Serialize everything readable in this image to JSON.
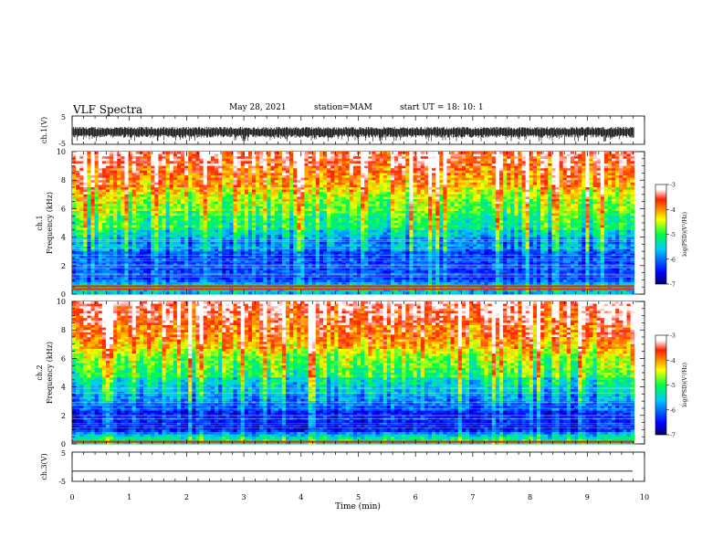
{
  "header": {
    "title": "VLF Spectra",
    "date": "May 28, 2021",
    "station": "station=MAM",
    "start_ut": "start  UT =  18: 10: 1"
  },
  "chart_data": [
    {
      "id": "ch1-waveform",
      "type": "line",
      "ylabel": "ch.1(V)",
      "ylim": [
        -5,
        5
      ],
      "yticks": [
        "5",
        "-5"
      ],
      "xlim": [
        0,
        10
      ],
      "description": "dense noisy voltage trace, roughly between -4 and +1 V"
    },
    {
      "id": "ch1-spectrogram",
      "type": "heatmap",
      "ylabel_line1": "ch.1",
      "ylabel_line2": "Frequency (kHz)",
      "ylim": [
        0,
        10
      ],
      "yticks": [
        "0",
        "2",
        "4",
        "6",
        "8",
        "10"
      ],
      "xlim": [
        0,
        10
      ],
      "x_data_end": 9.82,
      "colorbar": {
        "min": -7,
        "max": -3,
        "ticks": [
          "-3",
          "-4",
          "-5",
          "-6",
          "-7"
        ],
        "label": "log(PSD)(V²/Hz)"
      },
      "profile_freq_khz": [
        0,
        0.5,
        1,
        2,
        3,
        4,
        5,
        6,
        7,
        8,
        9,
        10
      ],
      "profile_log_psd": [
        -5.8,
        -5.2,
        -6.4,
        -6.3,
        -6.0,
        -5.6,
        -5.1,
        -4.8,
        -4.4,
        -4.0,
        -3.6,
        -3.4
      ],
      "bright_bands_khz": [
        0.35,
        0.55
      ]
    },
    {
      "id": "ch2-spectrogram",
      "type": "heatmap",
      "ylabel_line1": "ch.2",
      "ylabel_line2": "Frequency (kHz)",
      "ylim": [
        0,
        10
      ],
      "yticks": [
        "0",
        "2",
        "4",
        "6",
        "8",
        "10"
      ],
      "xlim": [
        0,
        10
      ],
      "x_data_end": 9.82,
      "colorbar": {
        "min": -7,
        "max": -3,
        "ticks": [
          "-3",
          "-4",
          "-5",
          "-6",
          "-7"
        ],
        "label": "log(PSD)(V²/Hz)"
      },
      "profile_freq_khz": [
        0,
        0.5,
        1,
        2,
        3,
        4,
        5,
        6,
        7,
        8,
        9,
        10
      ],
      "profile_log_psd": [
        -5.2,
        -5.4,
        -6.4,
        -6.4,
        -6.0,
        -5.5,
        -5.0,
        -4.6,
        -4.2,
        -3.8,
        -3.5,
        -3.3
      ],
      "bright_bands_khz": [
        0.15
      ]
    },
    {
      "id": "ch3-waveform",
      "type": "line",
      "ylabel": "ch.3(V)",
      "ylim": [
        -5,
        5
      ],
      "yticks": [
        "5",
        "-5"
      ],
      "xlim": [
        0,
        10
      ],
      "constant_value": -1.5
    }
  ],
  "x_axis": {
    "label": "Time  (min)",
    "ticks": [
      "0",
      "1",
      "2",
      "3",
      "4",
      "5",
      "6",
      "7",
      "8",
      "9",
      "10"
    ]
  }
}
